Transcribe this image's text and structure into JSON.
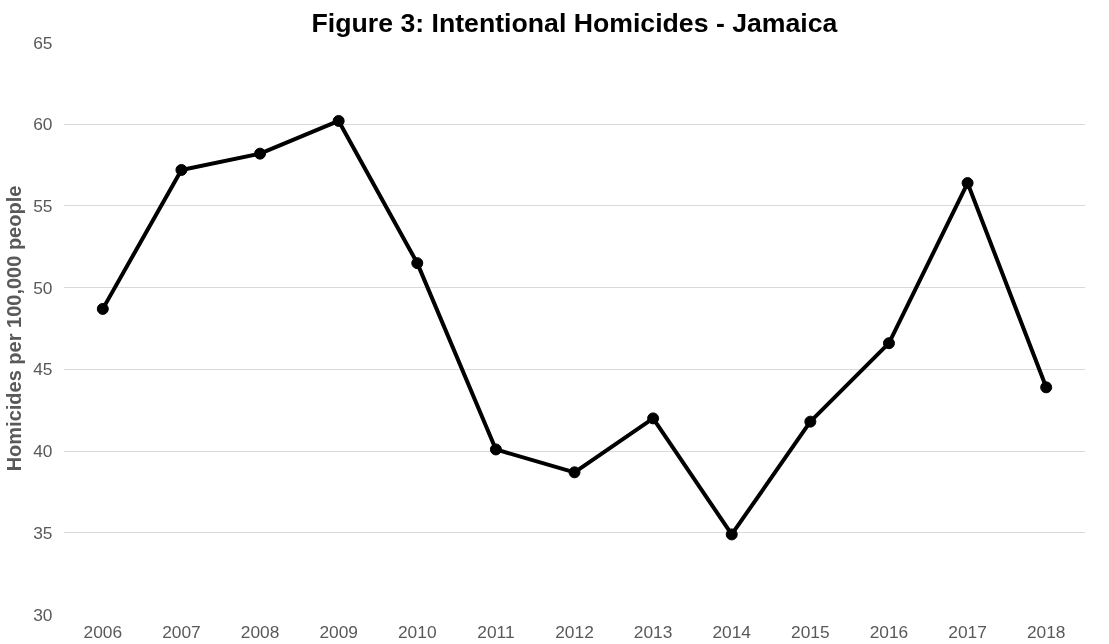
{
  "chart_data": {
    "type": "line",
    "title": "Figure 3: Intentional Homicides - Jamaica",
    "ylabel": "Homicides per 100,000 people",
    "categories": [
      "2006",
      "2007",
      "2008",
      "2009",
      "2010",
      "2011",
      "2012",
      "2013",
      "2014",
      "2015",
      "2016",
      "2017",
      "2018"
    ],
    "series": [
      {
        "color": "#000000",
        "values": [
          48.7,
          57.2,
          58.2,
          60.2,
          51.5,
          40.1,
          38.7,
          42.0,
          34.9,
          41.8,
          46.6,
          56.4,
          43.9
        ]
      }
    ],
    "ylim": [
      30,
      65
    ],
    "yticks": [
      30,
      35,
      40,
      45,
      50,
      55,
      60,
      65
    ],
    "grid": "y",
    "marker": "circle",
    "line_style": "solid"
  }
}
